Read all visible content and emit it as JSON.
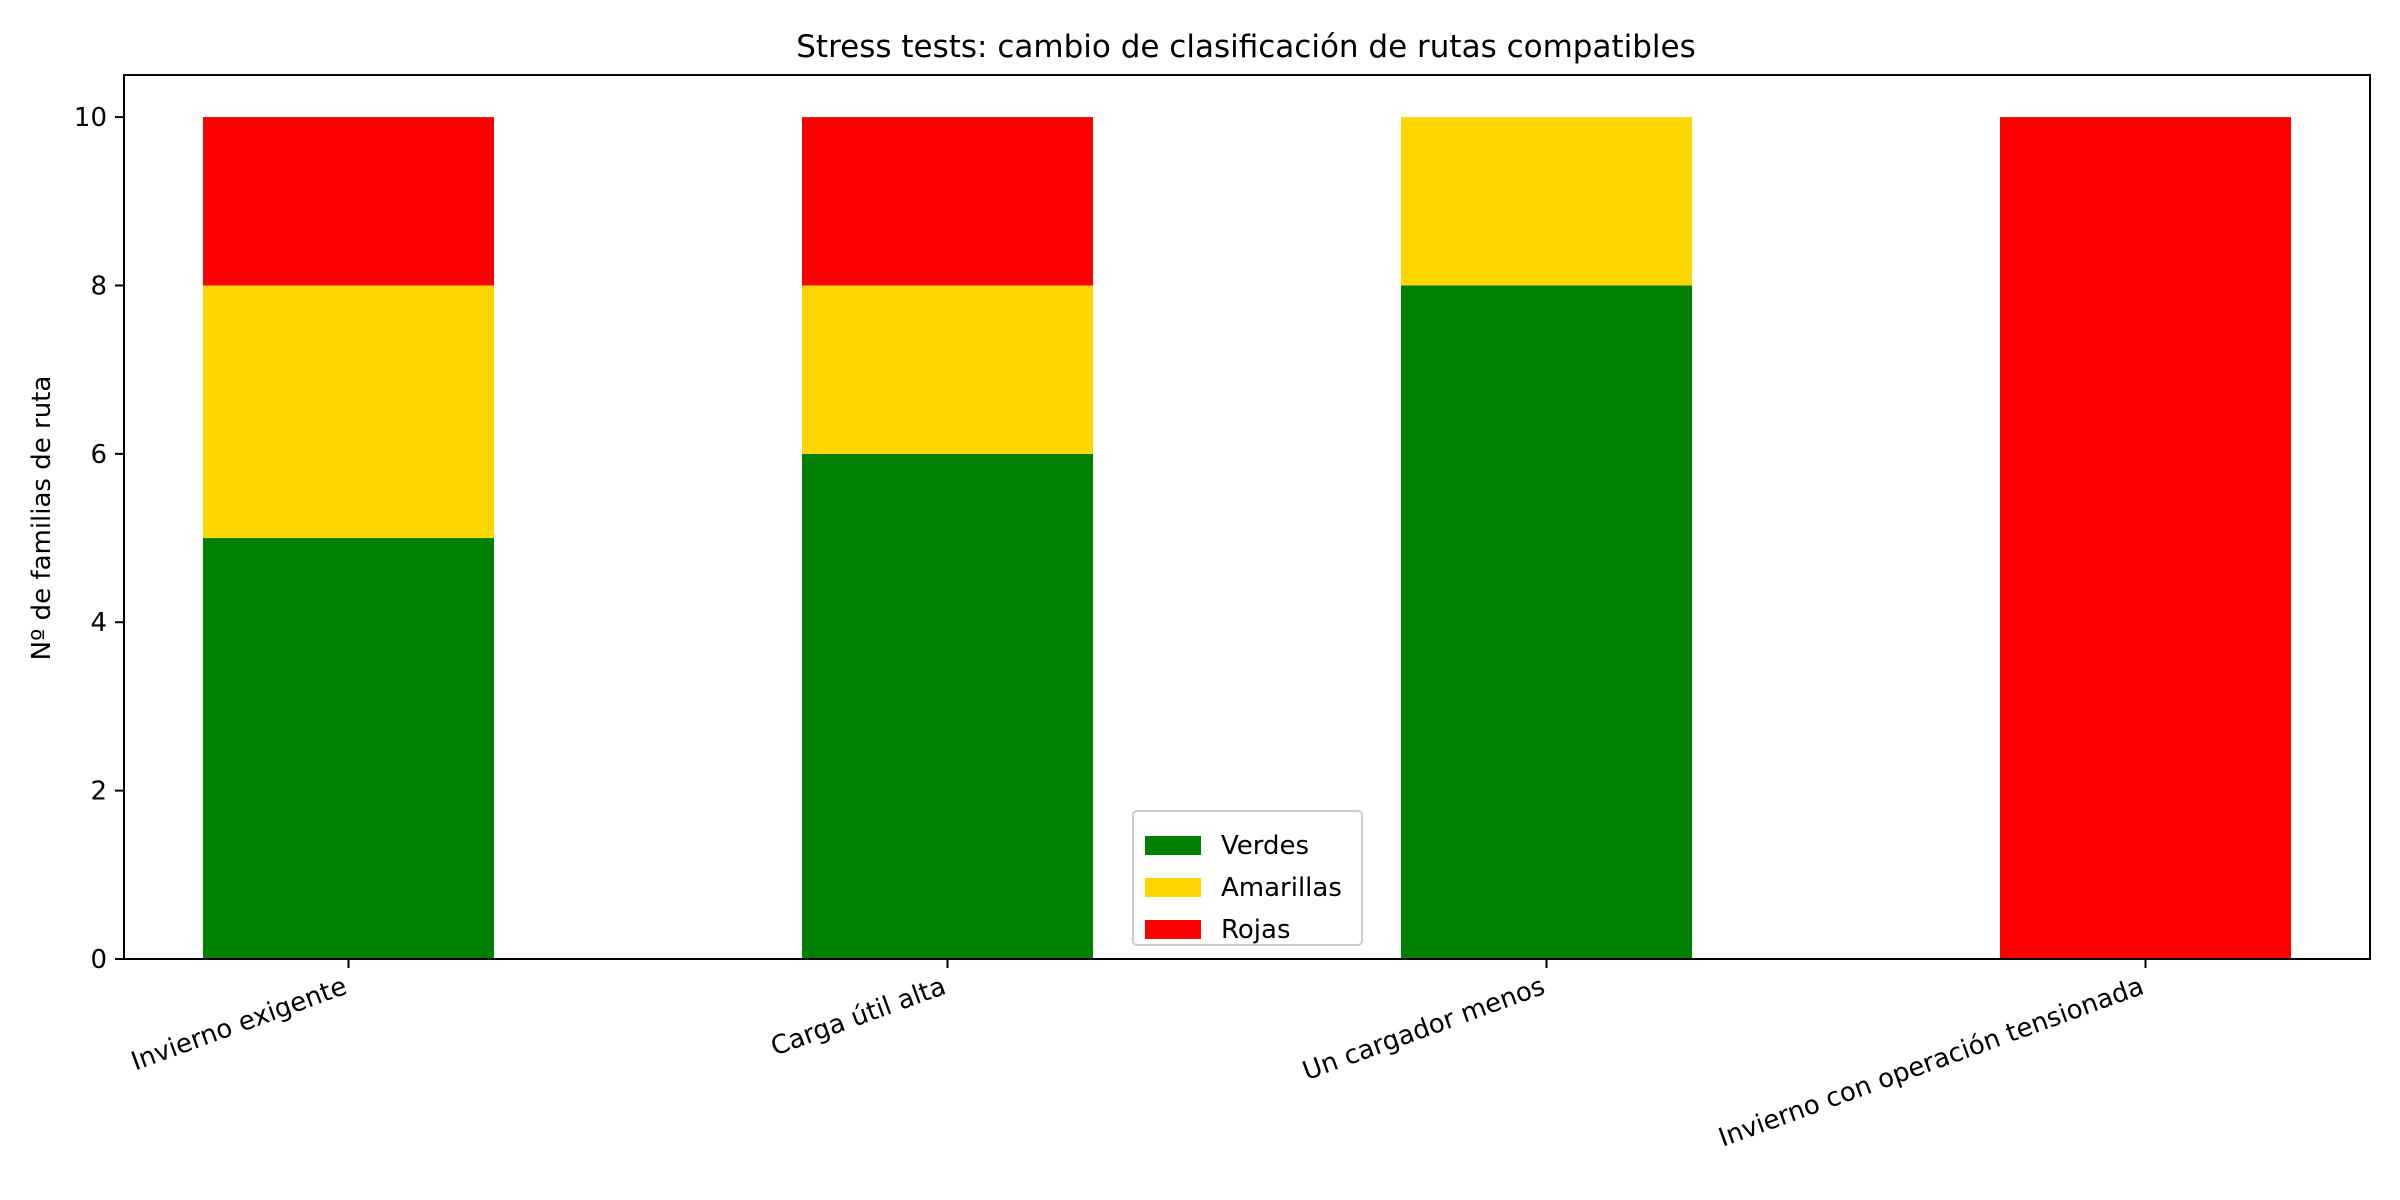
{
  "chart_data": {
    "type": "bar",
    "stacked": true,
    "title": "Stress tests: cambio de clasificación de rutas compatibles",
    "xlabel": "",
    "ylabel": "Nº de familias de ruta",
    "categories": [
      "Invierno exigente",
      "Carga útil alta",
      "Un cargador menos",
      "Invierno con operación tensionada"
    ],
    "series": [
      {
        "name": "Verdes",
        "color": "#008000",
        "values": [
          5,
          6,
          8,
          0
        ]
      },
      {
        "name": "Amarillas",
        "color": "#FFD700",
        "values": [
          3,
          2,
          2,
          0
        ]
      },
      {
        "name": "Rojas",
        "color": "#FF0000",
        "values": [
          2,
          2,
          0,
          10
        ]
      }
    ],
    "ylim": [
      0,
      10.5
    ],
    "yticks": [
      0,
      2,
      4,
      6,
      8,
      10
    ],
    "grid": false,
    "legend_position": "bottom-center"
  }
}
